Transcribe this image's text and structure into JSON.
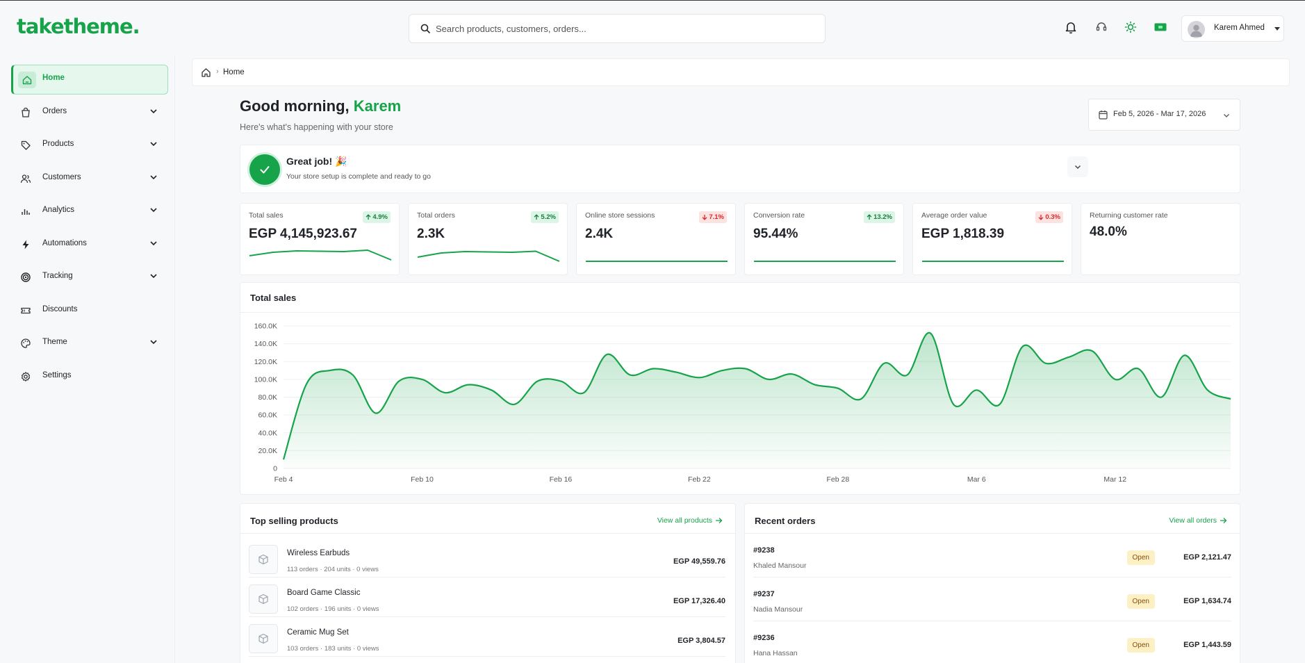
{
  "brand": {
    "logo_text": "takethemе."
  },
  "search": {
    "placeholder": "Search products, customers, orders..."
  },
  "user": {
    "name": "Karem Ahmed"
  },
  "sidebar": {
    "items": [
      {
        "label": "Home",
        "icon": "home-icon",
        "active": true
      },
      {
        "label": "Orders",
        "icon": "bag-icon",
        "expandable": true
      },
      {
        "label": "Products",
        "icon": "tag-icon",
        "expandable": true
      },
      {
        "label": "Customers",
        "icon": "users-icon",
        "expandable": true
      },
      {
        "label": "Analytics",
        "icon": "bar-chart-icon",
        "expandable": true
      },
      {
        "label": "Automations",
        "icon": "bolt-icon",
        "expandable": true
      },
      {
        "label": "Tracking",
        "icon": "target-icon",
        "expandable": true
      },
      {
        "label": "Discounts",
        "icon": "ticket-icon",
        "expandable": false
      },
      {
        "label": "Theme",
        "icon": "palette-icon",
        "expandable": true
      },
      {
        "label": "Settings",
        "icon": "gear-icon",
        "expandable": false
      }
    ]
  },
  "breadcrumb": {
    "current": "Home"
  },
  "greeting": {
    "prefix": "Good morning, ",
    "name": "Karem",
    "subtitle": "Here's what's happening with your store"
  },
  "date_range": "Feb 5, 2026 - Mar 17, 2026",
  "setup_card": {
    "title": "Great job! 🎉",
    "subtitle": "Your store setup is complete and ready to go"
  },
  "metrics": [
    {
      "label": "Total sales",
      "value": "EGP 4,145,923.67",
      "change": "4.9%",
      "direction": "up"
    },
    {
      "label": "Total orders",
      "value": "2.3K",
      "change": "5.2%",
      "direction": "up"
    },
    {
      "label": "Online store sessions",
      "value": "2.4K",
      "change": "7.1%",
      "direction": "down"
    },
    {
      "label": "Conversion rate",
      "value": "95.44%",
      "change": "13.2%",
      "direction": "up"
    },
    {
      "label": "Average order value",
      "value": "EGP 1,818.39",
      "change": "0.3%",
      "direction": "down"
    },
    {
      "label": "Returning customer rate",
      "value": "48.0%",
      "change": "",
      "direction": ""
    }
  ],
  "chart_data": {
    "type": "area",
    "title": "Total sales",
    "xlabel": "",
    "ylabel": "",
    "ylim": [
      0,
      160000
    ],
    "yticks": [
      0,
      20000,
      40000,
      60000,
      80000,
      100000,
      120000,
      140000,
      160000
    ],
    "ytick_labels": [
      "0",
      "20.0K",
      "40.0K",
      "60.0K",
      "80.0K",
      "100.0K",
      "120.0K",
      "140.0K",
      "160.0K"
    ],
    "xtick_labels": [
      "Feb 4",
      "Feb 10",
      "Feb 16",
      "Feb 22",
      "Feb 28",
      "Mar 6",
      "Mar 12"
    ],
    "x": [
      "Feb 4",
      "Feb 5",
      "Feb 6",
      "Feb 7",
      "Feb 8",
      "Feb 9",
      "Feb 10",
      "Feb 11",
      "Feb 12",
      "Feb 13",
      "Feb 14",
      "Feb 15",
      "Feb 16",
      "Feb 17",
      "Feb 18",
      "Feb 19",
      "Feb 20",
      "Feb 21",
      "Feb 22",
      "Feb 23",
      "Feb 24",
      "Feb 25",
      "Feb 26",
      "Feb 27",
      "Feb 28",
      "Mar 1",
      "Mar 2",
      "Mar 3",
      "Mar 4",
      "Mar 5",
      "Mar 6",
      "Mar 7",
      "Mar 8",
      "Mar 9",
      "Mar 10",
      "Mar 11",
      "Mar 12",
      "Mar 13",
      "Mar 14",
      "Mar 15",
      "Mar 16",
      "Mar 17"
    ],
    "values": [
      10000,
      95000,
      110000,
      105000,
      62000,
      98000,
      100000,
      85000,
      94000,
      88000,
      72000,
      98000,
      98000,
      85000,
      128000,
      105000,
      112000,
      108000,
      102000,
      110000,
      112000,
      100000,
      106000,
      94000,
      90000,
      78000,
      118000,
      105000,
      152000,
      72000,
      88000,
      72000,
      137000,
      118000,
      125000,
      132000,
      100000,
      112000,
      80000,
      127000,
      88000,
      78000
    ],
    "color": "#16a34a",
    "grid": true
  },
  "top_products": {
    "title": "Top selling products",
    "link": "View all products",
    "items": [
      {
        "name": "Wireless Earbuds",
        "meta": "113 orders · 204 units · 0 views",
        "value": "EGP 49,559.76"
      },
      {
        "name": "Board Game Classic",
        "meta": "102 orders · 196 units · 0 views",
        "value": "EGP 17,326.40"
      },
      {
        "name": "Ceramic Mug Set",
        "meta": "103 orders · 183 units · 0 views",
        "value": "EGP 3,804.57"
      }
    ]
  },
  "recent_orders": {
    "title": "Recent orders",
    "link": "View all orders",
    "items": [
      {
        "id": "#9238",
        "customer": "Khaled Mansour",
        "status": "Open",
        "value": "EGP 2,121.47"
      },
      {
        "id": "#9237",
        "customer": "Nadia Mansour",
        "status": "Open",
        "value": "EGP 1,634.74"
      },
      {
        "id": "#9236",
        "customer": "Hana Hassan",
        "status": "Open",
        "value": "EGP 1,443.59"
      }
    ]
  }
}
